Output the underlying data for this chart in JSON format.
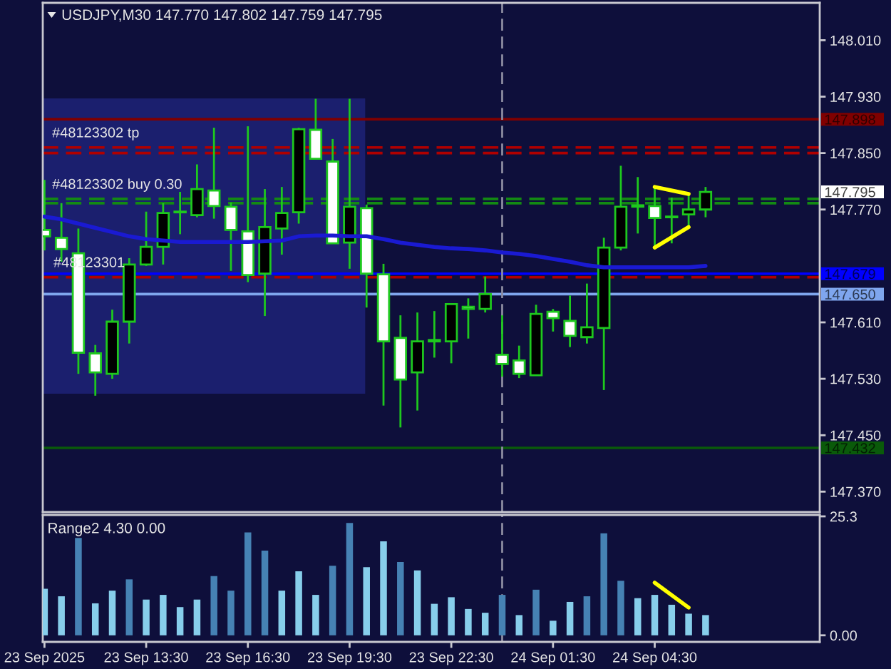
{
  "chart_data": [
    {
      "type": "candlestick",
      "title": "USDJPY,M30 147.770 147.802 147.759 147.795",
      "x": [
        "2025-09-23T10:30",
        "2025-09-23T11:00",
        "2025-09-23T11:30",
        "2025-09-23T12:00",
        "2025-09-23T12:30",
        "2025-09-23T13:00",
        "2025-09-23T13:30",
        "2025-09-23T14:00",
        "2025-09-23T14:30",
        "2025-09-23T15:00",
        "2025-09-23T15:30",
        "2025-09-23T16:00",
        "2025-09-23T16:30",
        "2025-09-23T17:00",
        "2025-09-23T17:30",
        "2025-09-23T18:00",
        "2025-09-23T18:30",
        "2025-09-23T19:00",
        "2025-09-23T19:30",
        "2025-09-23T20:00",
        "2025-09-23T20:30",
        "2025-09-23T21:00",
        "2025-09-23T21:30",
        "2025-09-23T22:00",
        "2025-09-23T22:30",
        "2025-09-23T23:00",
        "2025-09-23T23:30",
        "2025-09-24T00:00",
        "2025-09-24T00:30",
        "2025-09-24T01:00",
        "2025-09-24T01:30",
        "2025-09-24T02:00",
        "2025-09-24T02:30",
        "2025-09-24T03:00",
        "2025-09-24T03:30",
        "2025-09-24T04:00",
        "2025-09-24T04:30",
        "2025-09-24T05:00",
        "2025-09-24T05:30",
        "2025-09-24T06:00"
      ],
      "ohlc": [
        [
          147.741,
          147.812,
          147.712,
          147.732
        ],
        [
          147.73,
          147.779,
          147.696,
          147.714
        ],
        [
          147.708,
          147.743,
          147.537,
          147.567
        ],
        [
          147.566,
          147.578,
          147.506,
          147.539
        ],
        [
          147.537,
          147.628,
          147.53,
          147.611
        ],
        [
          147.611,
          147.701,
          147.58,
          147.692
        ],
        [
          147.692,
          147.767,
          147.69,
          147.717
        ],
        [
          147.717,
          147.779,
          147.692,
          147.765
        ],
        [
          147.766,
          147.795,
          147.735,
          147.767
        ],
        [
          147.762,
          147.834,
          147.759,
          147.799
        ],
        [
          147.797,
          147.886,
          147.757,
          147.775
        ],
        [
          147.774,
          147.78,
          147.683,
          147.741
        ],
        [
          147.739,
          147.888,
          147.667,
          147.677
        ],
        [
          147.679,
          147.799,
          147.619,
          147.745
        ],
        [
          147.743,
          147.802,
          147.706,
          147.765
        ],
        [
          147.766,
          147.886,
          147.75,
          147.884
        ],
        [
          147.883,
          147.927,
          147.841,
          147.842
        ],
        [
          147.838,
          147.87,
          147.722,
          147.722
        ],
        [
          147.723,
          147.927,
          147.686,
          147.774
        ],
        [
          147.772,
          147.777,
          147.631,
          147.679
        ],
        [
          147.678,
          147.693,
          147.492,
          147.583
        ],
        [
          147.588,
          147.62,
          147.461,
          147.529
        ],
        [
          147.539,
          147.624,
          147.485,
          147.583
        ],
        [
          147.585,
          147.626,
          147.56,
          147.583
        ],
        [
          147.583,
          147.636,
          147.552,
          147.636
        ],
        [
          147.632,
          147.644,
          147.587,
          147.629
        ],
        [
          147.629,
          147.675,
          147.624,
          147.65
        ],
        [
          147.564,
          147.62,
          147.533,
          147.551
        ],
        [
          147.556,
          147.577,
          147.531,
          147.537
        ],
        [
          147.535,
          147.635,
          147.535,
          147.622
        ],
        [
          147.625,
          147.629,
          147.597,
          147.616
        ],
        [
          147.612,
          147.648,
          147.575,
          147.591
        ],
        [
          147.589,
          147.665,
          147.58,
          147.603
        ],
        [
          147.602,
          147.73,
          147.514,
          147.716
        ],
        [
          147.716,
          147.832,
          147.712,
          147.774
        ],
        [
          147.776,
          147.816,
          147.736,
          147.774
        ],
        [
          147.775,
          147.802,
          147.716,
          147.758
        ],
        [
          147.759,
          147.787,
          147.722,
          147.76
        ],
        [
          147.763,
          147.791,
          147.745,
          147.77
        ],
        [
          147.77,
          147.802,
          147.759,
          147.795
        ]
      ],
      "color": "#1ec81e",
      "colors": [
        "#ffffff",
        "#ffffff",
        "#ffffff",
        "#ffffff",
        "#000000",
        "#000000",
        "#000000",
        "#000000",
        "#000000",
        "#000000",
        "#ffffff",
        "#ffffff",
        "#ffffff",
        "#000000",
        "#000000",
        "#000000",
        "#ffffff",
        "#ffffff",
        "#000000",
        "#ffffff",
        "#ffffff",
        "#ffffff",
        "#000000",
        "#ffffff",
        "#000000",
        "#ffffff",
        "#000000",
        "#ffffff",
        "#ffffff",
        "#000000",
        "#ffffff",
        "#ffffff",
        "#000000",
        "#000000",
        "#000000",
        "#ffffff",
        "#ffffff",
        "#000000",
        "#000000",
        "#000000"
      ],
      "series": [
        {
          "type": "line",
          "color": "#1a1ad2",
          "values": [
            147.76,
            147.756,
            147.75,
            147.744,
            147.738,
            147.732,
            147.728,
            147.726,
            147.724,
            147.724,
            147.724,
            147.724,
            147.724,
            147.725,
            147.726,
            147.732,
            147.733,
            147.733,
            147.732,
            147.732,
            147.728,
            147.723,
            147.72,
            147.717,
            147.715,
            147.714,
            147.712,
            147.709,
            147.707,
            147.704,
            147.7,
            147.696,
            147.691,
            147.688,
            147.688,
            147.688,
            147.688,
            147.688,
            147.688,
            147.69
          ]
        },
        {
          "type": "line",
          "color": "#ffff00",
          "x": [
            "2025-09-24T04:30",
            "2025-09-24T05:30"
          ],
          "values": [
            147.802,
            147.792
          ]
        },
        {
          "type": "line",
          "color": "#ffff00",
          "x": [
            "2025-09-24T04:30",
            "2025-09-24T05:30"
          ],
          "values": [
            147.716,
            147.745
          ]
        }
      ],
      "xlim": [
        "2025-09-23T10:27",
        "2025-09-24T09:22"
      ],
      "ylim": [
        147.341,
        148.063
      ],
      "yticks": [
        {
          "value": 148.01,
          "label": "148.010"
        },
        {
          "value": 147.93,
          "label": "147.930"
        },
        {
          "value": 147.85,
          "label": "147.850"
        },
        {
          "value": 147.77,
          "label": "147.770"
        },
        {
          "value": 147.61,
          "label": "147.610"
        },
        {
          "value": 147.53,
          "label": "147.530"
        },
        {
          "value": 147.45,
          "label": "147.450"
        },
        {
          "value": 147.37,
          "label": "147.370"
        }
      ],
      "tick_labels": "y",
      "ref_lines": [
        {
          "axis": "y",
          "value": 147.898,
          "label": "147.898",
          "color": "#800000",
          "line_style": "solid"
        },
        {
          "axis": "y",
          "value": 147.858,
          "label": "#48123302 tp",
          "color": "#b00000",
          "line_style": "dashed"
        },
        {
          "axis": "y",
          "value": 147.85,
          "label": null,
          "color": "#b00000",
          "line_style": "dashed"
        },
        {
          "axis": "y",
          "value": 147.785,
          "label": "#48123302 buy 0.30",
          "color": "#138a13",
          "line_style": "dashed"
        },
        {
          "axis": "y",
          "value": 147.779,
          "label": null,
          "color": "#138a13",
          "line_style": "dashed"
        },
        {
          "axis": "y",
          "value": 147.679,
          "label": "147.679",
          "color": "#0000ff",
          "line_style": "solid"
        },
        {
          "axis": "y",
          "value": 147.674,
          "label": null,
          "color": "#b00000",
          "line_style": "dashed"
        },
        {
          "axis": "y",
          "value": 147.65,
          "label": "147.650",
          "color": "#7fa6ee",
          "line_style": "solid"
        },
        {
          "axis": "y",
          "value": 147.432,
          "label": "147.432",
          "color": "#0a5a0a",
          "line_style": "solid"
        },
        {
          "axis": "x",
          "value": "2025-09-24T00:00",
          "label": null,
          "color": "#8c8ca0",
          "line_style": "dashed"
        }
      ],
      "annotations": [
        "147.795",
        {
          "text": "#48123301",
          "x": "2025-09-23T10:46",
          "y": 147.674
        }
      ]
    },
    {
      "type": "bar",
      "title": "Range2 4.30 0.00",
      "x": [
        "2025-09-23T10:30",
        "2025-09-23T11:00",
        "2025-09-23T11:30",
        "2025-09-23T12:00",
        "2025-09-23T12:30",
        "2025-09-23T13:00",
        "2025-09-23T13:30",
        "2025-09-23T14:00",
        "2025-09-23T14:30",
        "2025-09-23T15:00",
        "2025-09-23T15:30",
        "2025-09-23T16:00",
        "2025-09-23T16:30",
        "2025-09-23T17:00",
        "2025-09-23T17:30",
        "2025-09-23T18:00",
        "2025-09-23T18:30",
        "2025-09-23T19:00",
        "2025-09-23T19:30",
        "2025-09-23T20:00",
        "2025-09-23T20:30",
        "2025-09-23T21:00",
        "2025-09-23T21:30",
        "2025-09-23T22:00",
        "2025-09-23T22:30",
        "2025-09-23T23:00",
        "2025-09-23T23:30",
        "2025-09-24T00:00",
        "2025-09-24T00:30",
        "2025-09-24T01:00",
        "2025-09-24T01:30",
        "2025-09-24T02:00",
        "2025-09-24T02:30",
        "2025-09-24T03:00",
        "2025-09-24T03:30",
        "2025-09-24T04:00",
        "2025-09-24T04:30",
        "2025-09-24T05:00",
        "2025-09-24T05:30",
        "2025-09-24T06:00"
      ],
      "series": [
        {
          "type": "bar",
          "values": [
            9.9,
            8.3,
            20.7,
            6.8,
            9.5,
            11.9,
            7.6,
            8.6,
            6.0,
            7.6,
            12.6,
            9.5,
            21.9,
            18.0,
            9.5,
            13.6,
            8.6,
            14.8,
            23.9,
            14.5,
            20.0,
            15.6,
            13.8,
            6.7,
            8.1,
            5.6,
            4.8,
            8.6,
            4.3,
            9.7,
            3.1,
            7.1,
            8.3,
            21.7,
            11.6,
            7.9,
            8.6,
            6.5,
            4.6,
            4.3
          ],
          "colors": [
            "#87ceeb",
            "#87ceeb",
            "#4682b4",
            "#87ceeb",
            "#87ceeb",
            "#4682b4",
            "#87ceeb",
            "#87ceeb",
            "#87ceeb",
            "#87ceeb",
            "#4682b4",
            "#4682b4",
            "#4682b4",
            "#4682b4",
            "#87ceeb",
            "#87ceeb",
            "#87ceeb",
            "#4682b4",
            "#4682b4",
            "#87ceeb",
            "#87ceeb",
            "#4682b4",
            "#87ceeb",
            "#87ceeb",
            "#87ceeb",
            "#87ceeb",
            "#87ceeb",
            "#4682b4",
            "#87ceeb",
            "#4682b4",
            "#87ceeb",
            "#87ceeb",
            "#4682b4",
            "#4682b4",
            "#4682b4",
            "#87ceeb",
            "#87ceeb",
            "#87ceeb",
            "#87ceeb",
            "#87ceeb"
          ]
        },
        {
          "type": "line",
          "color": "#ffff00",
          "x": [
            "2025-09-24T04:30",
            "2025-09-24T05:30"
          ],
          "values": [
            11.2,
            5.9
          ]
        }
      ],
      "xlim": [
        "2025-09-23T10:27",
        "2025-09-24T09:22"
      ],
      "xticks": [
        {
          "value": "2025-09-23T10:30",
          "label": "23 Sep 2025"
        },
        {
          "value": "2025-09-23T13:30",
          "label": "23 Sep 13:30"
        },
        {
          "value": "2025-09-23T16:30",
          "label": "23 Sep 16:30"
        },
        {
          "value": "2025-09-23T19:30",
          "label": "23 Sep 19:30"
        },
        {
          "value": "2025-09-23T22:30",
          "label": "23 Sep 22:30"
        },
        {
          "value": "2025-09-24T01:30",
          "label": "24 Sep 01:30"
        },
        {
          "value": "2025-09-24T04:30",
          "label": "24 Sep 04:30"
        }
      ],
      "ylim": [
        -1.4,
        25.6
      ],
      "yticks": [
        25.3,
        {
          "value": 0,
          "label": "0.00"
        }
      ],
      "ref_lines": [
        {
          "axis": "x",
          "value": "2025-09-24T00:00",
          "label": null,
          "color": "#8c8ca0",
          "line_style": "dashed"
        }
      ]
    }
  ]
}
